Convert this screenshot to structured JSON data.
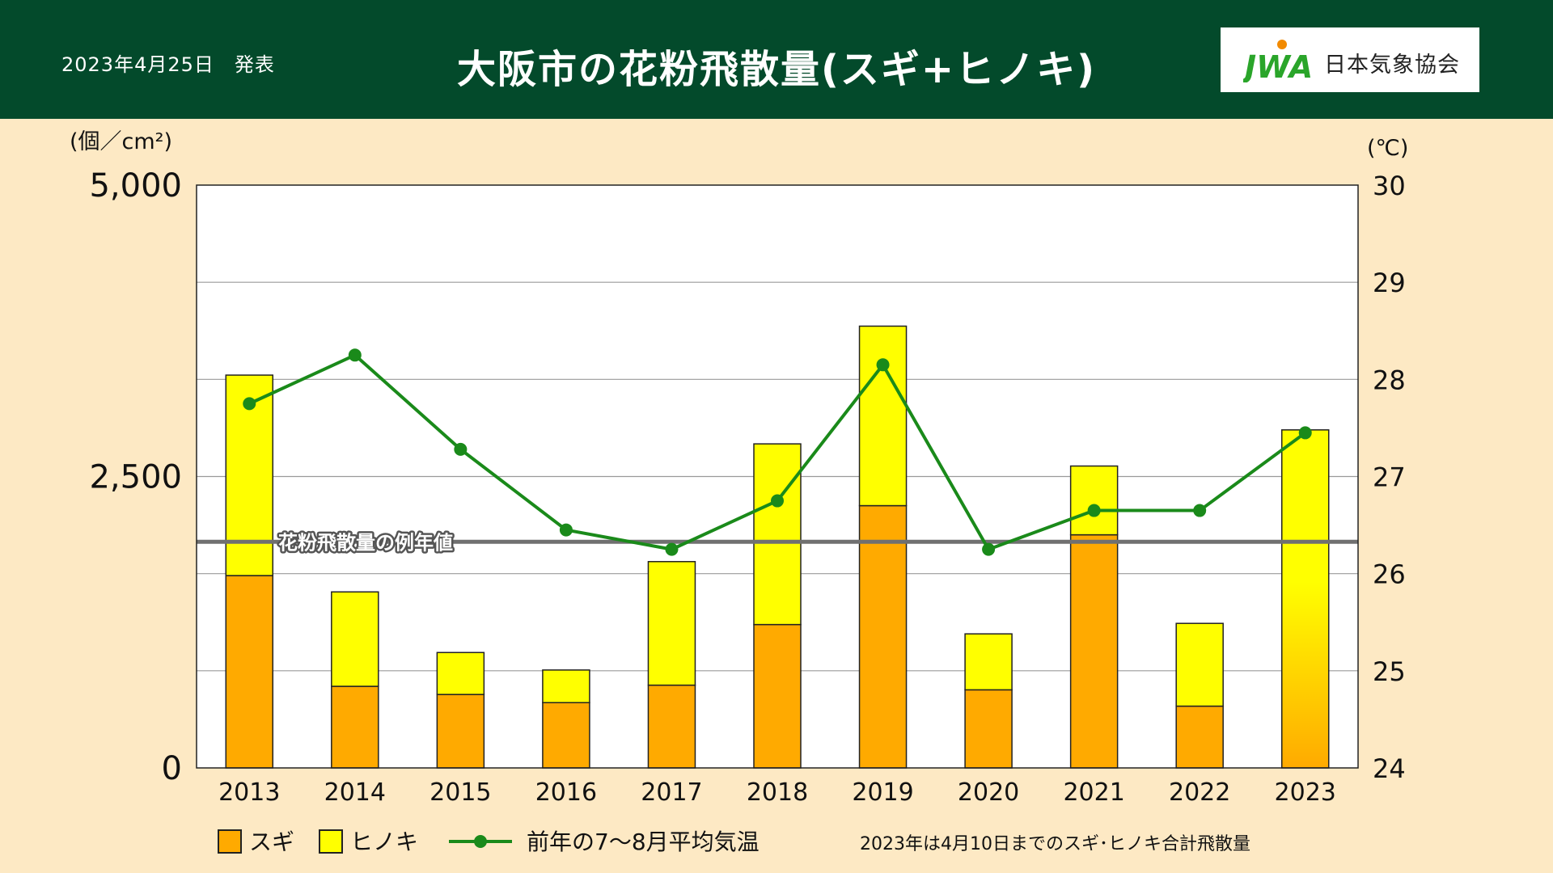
{
  "header": {
    "date": "2023年4月25日　発表",
    "title": "大阪市の花粉飛散量(スギ+ヒノキ)",
    "logo_text": "日本気象協会",
    "logo_mark": "JWA"
  },
  "footnote": "2023年は4月10日までのスギ･ヒノキ合計飛散量",
  "colors": {
    "header_bg": "#034a2b",
    "page_bg": "#fde9c4",
    "sugi": "#ffaa00",
    "hinoki": "#ffff00",
    "temp_line": "#1a8a1a",
    "normal_line": "#707070"
  },
  "chart_data": {
    "type": "bar",
    "stacked": true,
    "categories": [
      "2013",
      "2014",
      "2015",
      "2016",
      "2017",
      "2018",
      "2019",
      "2020",
      "2021",
      "2022",
      "2023"
    ],
    "series": [
      {
        "name": "スギ",
        "values": [
          1650,
          700,
          630,
          560,
          710,
          1230,
          2250,
          670,
          2000,
          530,
          null
        ]
      },
      {
        "name": "ヒノキ",
        "values": [
          1720,
          810,
          360,
          280,
          1060,
          1550,
          1540,
          480,
          590,
          710,
          null
        ]
      }
    ],
    "combined_2023": 2900,
    "line_series": {
      "name": "前年の7～8月平均気温",
      "values": [
        27.75,
        28.25,
        27.28,
        26.45,
        26.25,
        26.75,
        28.15,
        26.25,
        26.65,
        26.65,
        27.45
      ]
    },
    "reference_line": {
      "label": "花粉飛散量の例年値",
      "value": 1940
    },
    "y_left": {
      "unit": "(個／cm²)",
      "ylim": [
        0,
        5000
      ],
      "ticks": [
        "0",
        "2,500",
        "5,000"
      ]
    },
    "y_right": {
      "unit": "(℃)",
      "ylim": [
        24,
        30
      ],
      "ticks": [
        "24",
        "25",
        "26",
        "27",
        "28",
        "29",
        "30"
      ]
    },
    "legend": {
      "sugi": "スギ",
      "hinoki": "ヒノキ",
      "temp": "前年の7～8月平均気温",
      "position": "bottom"
    },
    "grid": true
  }
}
